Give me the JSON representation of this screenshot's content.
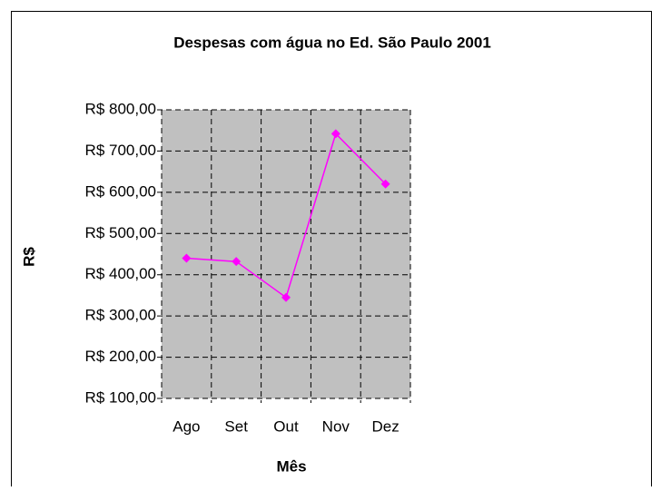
{
  "chart_data": {
    "type": "line",
    "title": "Despesas com água no Ed. São Paulo 2001",
    "x_label": "Mês",
    "y_label": "R$",
    "categories": [
      "Ago",
      "Set",
      "Out",
      "Nov",
      "Dez"
    ],
    "values": [
      440,
      432,
      345,
      742,
      620
    ],
    "color": "#ff00ff",
    "ylim": [
      100,
      800
    ],
    "yticks": [
      {
        "value": 100,
        "label": "R$ 100,00"
      },
      {
        "value": 200,
        "label": "R$ 200,00"
      },
      {
        "value": 300,
        "label": "R$ 300,00"
      },
      {
        "value": 400,
        "label": "R$ 400,00"
      },
      {
        "value": 500,
        "label": "R$ 500,00"
      },
      {
        "value": 600,
        "label": "R$ 600,00"
      },
      {
        "value": 700,
        "label": "R$ 700,00"
      },
      {
        "value": 800,
        "label": "R$ 800,00"
      }
    ],
    "grid": true
  }
}
